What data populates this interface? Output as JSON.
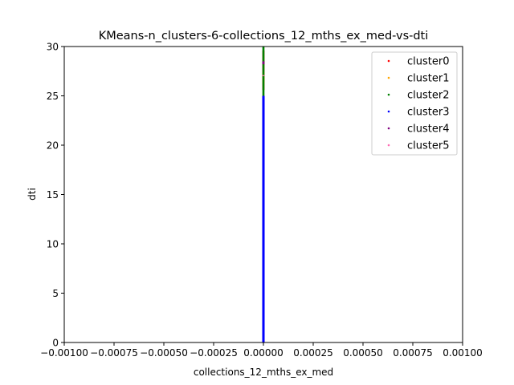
{
  "chart_data": {
    "type": "scatter",
    "title": "KMeans-n_clusters-6-collections_12_mths_ex_med-vs-dti",
    "xlabel": "collections_12_mths_ex_med",
    "ylabel": "dti",
    "xlim": [
      -0.001,
      0.001
    ],
    "ylim": [
      0,
      30
    ],
    "x_ticks": [
      -0.001,
      -0.00075,
      -0.0005,
      -0.00025,
      0.0,
      0.00025,
      0.0005,
      0.00075,
      0.001
    ],
    "x_tick_labels": [
      "−0.00100",
      "−0.00075",
      "−0.00050",
      "−0.00025",
      "0.00000",
      "0.00025",
      "0.00050",
      "0.00075",
      "0.00100"
    ],
    "y_ticks": [
      0,
      5,
      10,
      15,
      20,
      25,
      30
    ],
    "y_tick_labels": [
      "0",
      "5",
      "10",
      "15",
      "20",
      "25",
      "30"
    ],
    "grid": false,
    "legend_position": "top-right",
    "series": [
      {
        "name": "cluster0",
        "color": "#ff0000",
        "x": [
          0,
          0
        ],
        "y": [
          25.6,
          29.6
        ]
      },
      {
        "name": "cluster1",
        "color": "#ffa500",
        "x": [
          0,
          0,
          0,
          0
        ],
        "y": [
          26.2,
          27.4,
          28.6,
          29.4
        ]
      },
      {
        "name": "cluster2",
        "color": "#008000",
        "x": [
          0,
          0
        ],
        "y": [
          25.0,
          30.0
        ]
      },
      {
        "name": "cluster3",
        "color": "#0000ff",
        "x": [
          0,
          0
        ],
        "y": [
          0.0,
          25.0
        ]
      },
      {
        "name": "cluster4",
        "color": "#800080",
        "x": [
          0,
          0
        ],
        "y": [
          28.2,
          28.5
        ]
      },
      {
        "name": "cluster5",
        "color": "#ff69b4",
        "x": [
          0,
          0
        ],
        "y": [
          27.0,
          27.1
        ]
      }
    ]
  }
}
